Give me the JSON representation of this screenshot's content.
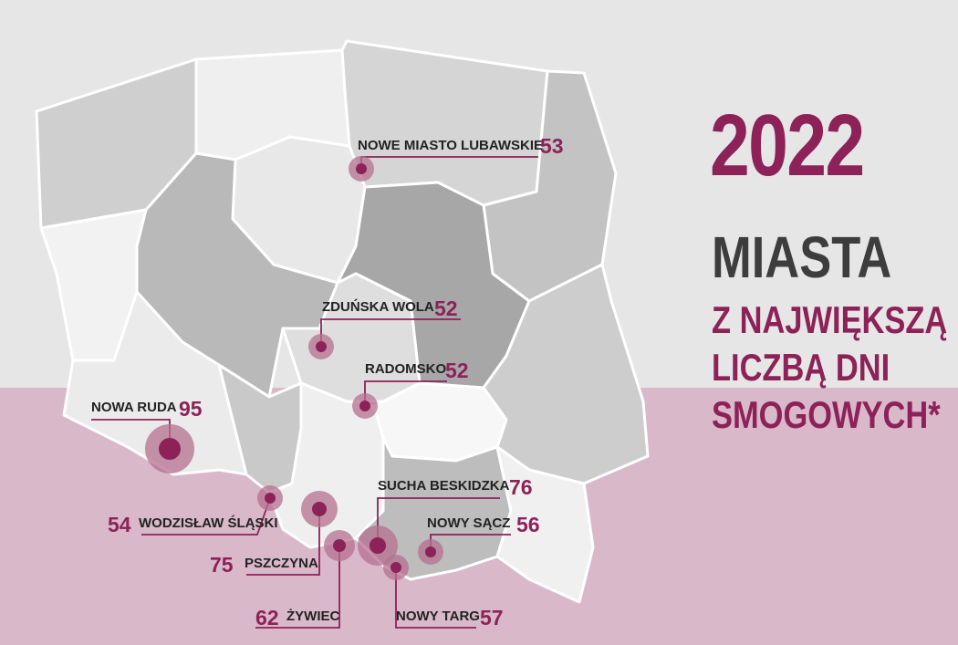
{
  "heading": {
    "year": "2022",
    "title": "MIASTA",
    "subtitle_lines": [
      "Z NAJWIĘKSZĄ",
      "LICZBĄ DNI",
      "SMOGOWYCH*"
    ]
  },
  "colors": {
    "accent": "#8c2258",
    "dark": "#3d3d3d",
    "bg_top": "#e6e6e6",
    "bg_bottom": "#d9b8ca"
  },
  "cities": [
    {
      "name": "NOWE MIASTO LUBAWSKIE",
      "days": "53"
    },
    {
      "name": "ZDUŃSKA WOLA",
      "days": "52"
    },
    {
      "name": "RADOMSKO",
      "days": "52"
    },
    {
      "name": "NOWA RUDA",
      "days": "95"
    },
    {
      "name": "WODZISŁAW ŚLĄSKI",
      "days": "54"
    },
    {
      "name": "PSZCZYNA",
      "days": "75"
    },
    {
      "name": "ŻYWIEC",
      "days": "62"
    },
    {
      "name": "SUCHA BESKIDZKA",
      "days": "76"
    },
    {
      "name": "NOWY SĄCZ",
      "days": "56"
    },
    {
      "name": "NOWY TARG",
      "days": "57"
    }
  ]
}
